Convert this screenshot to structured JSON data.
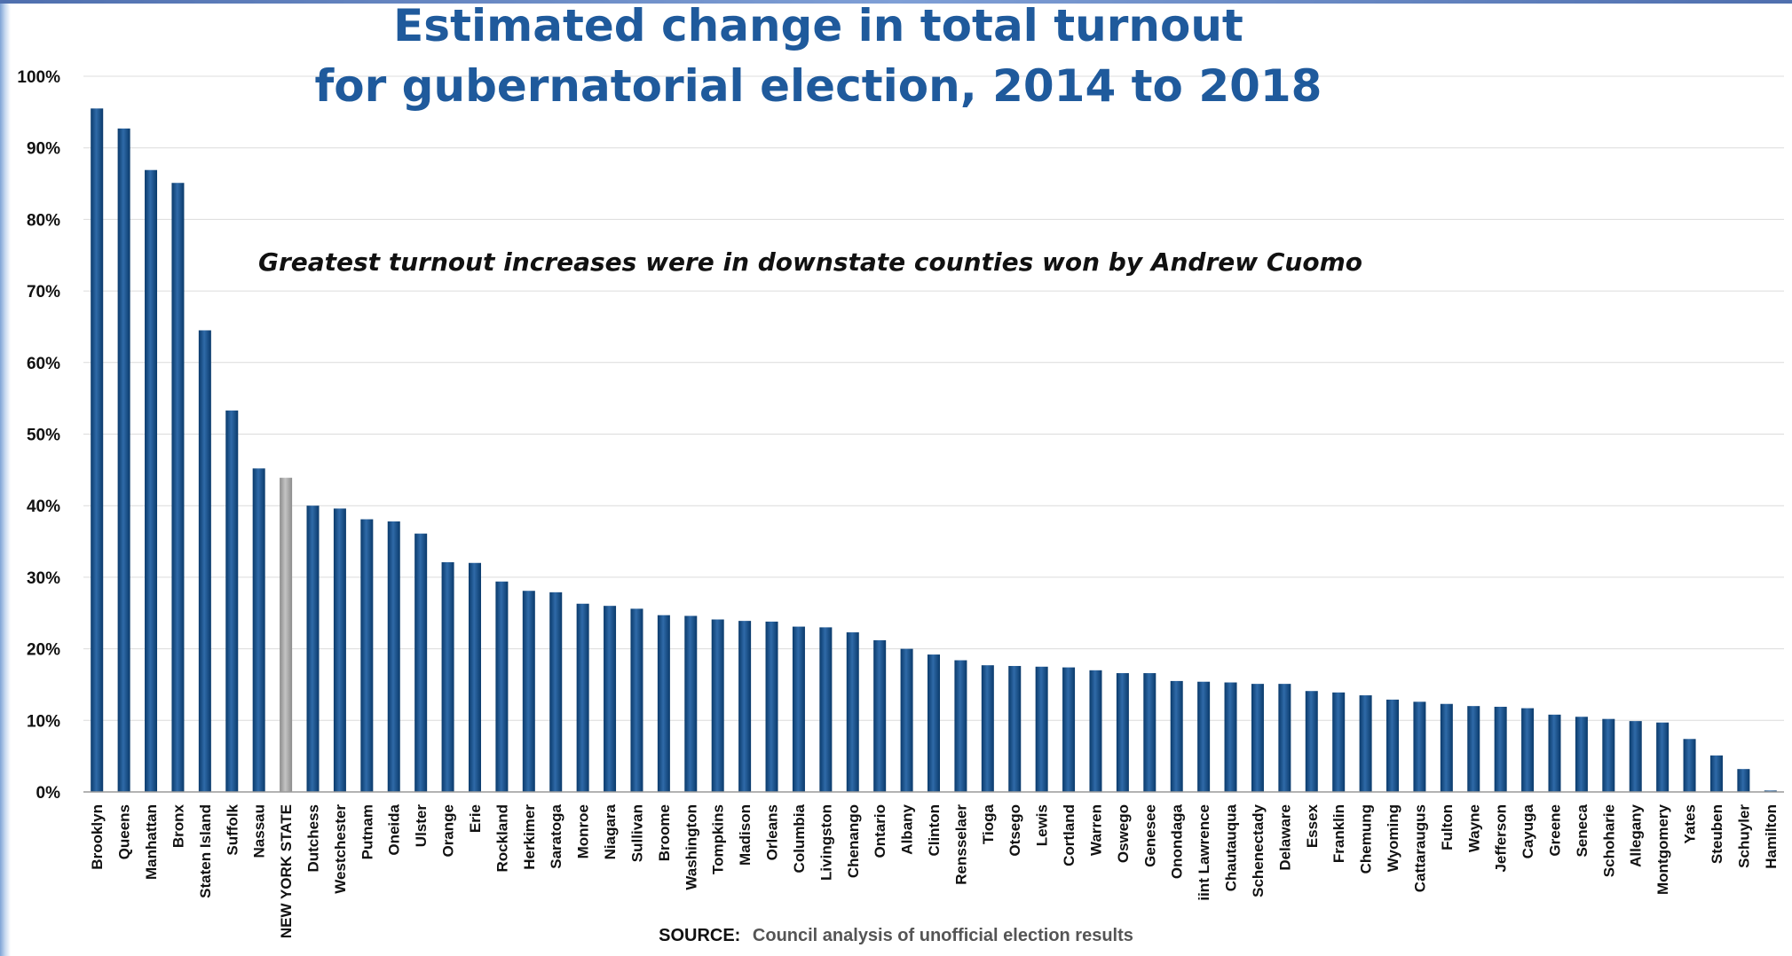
{
  "chart_data": {
    "type": "bar",
    "title_lines": [
      "Estimated change in total turnout",
      "for gubernatorial election, 2014 to 2018"
    ],
    "subtitle": "Greatest turnout increases were in downstate counties won by Andrew Cuomo",
    "xlabel": "",
    "ylabel": "",
    "ylim": [
      0,
      100
    ],
    "ytick_labels": [
      "0%",
      "10%",
      "20%",
      "30%",
      "40%",
      "50%",
      "60%",
      "70%",
      "80%",
      "90%",
      "100%"
    ],
    "value_unit": "percent",
    "grid": true,
    "legend": "none",
    "bar_color": "#0a3a6b",
    "highlight_color": "#8c8c8c",
    "highlight_category": "NEW YORK STATE",
    "categories": [
      "Brooklyn",
      "Queens",
      "Manhattan",
      "Bronx",
      "Staten Island",
      "Suffolk",
      "Nassau",
      "NEW YORK STATE",
      "Dutchess",
      "Westchester",
      "Putnam",
      "Oneida",
      "Ulster",
      "Orange",
      "Erie",
      "Rockland",
      "Herkimer",
      "Saratoga",
      "Monroe",
      "Niagara",
      "Sullivan",
      "Broome",
      "Washington",
      "Tompkins",
      "Madison",
      "Orleans",
      "Columbia",
      "Livingston",
      "Chenango",
      "Ontario",
      "Albany",
      "Clinton",
      "Rensselaer",
      "Tioga",
      "Otsego",
      "Lewis",
      "Cortland",
      "Warren",
      "Oswego",
      "Genesee",
      "Onondaga",
      "iint Lawrence",
      "Chautauqua",
      "Schenectady",
      "Delaware",
      "Essex",
      "Franklin",
      "Chemung",
      "Wyoming",
      "Cattaraugus",
      "Fulton",
      "Wayne",
      "Jefferson",
      "Cayuga",
      "Greene",
      "Seneca",
      "Schoharie",
      "Allegany",
      "Montgomery",
      "Yates",
      "Steuben",
      "Schuyler",
      "Hamilton"
    ],
    "values": [
      95.5,
      92.7,
      86.9,
      85.1,
      64.5,
      53.3,
      45.2,
      43.9,
      40.0,
      39.6,
      38.1,
      37.8,
      36.1,
      32.1,
      32.0,
      29.4,
      28.1,
      27.9,
      26.3,
      26.0,
      25.6,
      24.7,
      24.6,
      24.1,
      23.9,
      23.8,
      23.1,
      23.0,
      22.3,
      21.2,
      20.0,
      19.2,
      18.4,
      17.7,
      17.6,
      17.5,
      17.4,
      17.0,
      16.6,
      16.6,
      15.5,
      15.4,
      15.3,
      15.1,
      15.1,
      14.1,
      13.9,
      13.5,
      12.9,
      12.6,
      12.3,
      12.0,
      11.9,
      11.7,
      10.8,
      10.5,
      10.2,
      9.9,
      9.7,
      7.4,
      5.1,
      3.2,
      0.2
    ]
  },
  "source": {
    "label": "SOURCE:",
    "text": "Council analysis of unofficial election results"
  }
}
